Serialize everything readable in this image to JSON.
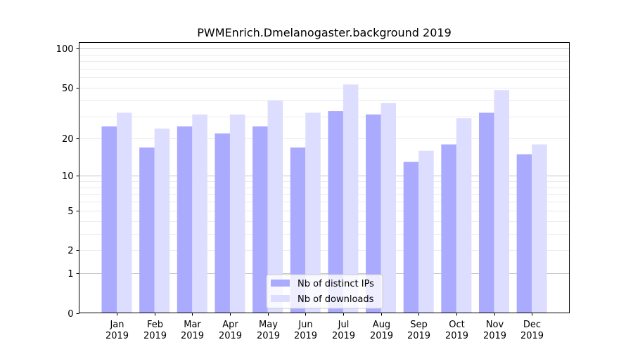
{
  "chart_data": {
    "type": "bar",
    "title": "PWMEnrich.Dmelanogaster.background 2019",
    "xlabel": "",
    "ylabel": "",
    "yscale": "log(1+y)",
    "ylim": [
      0,
      110
    ],
    "grid": true,
    "legend_position": "bottom-center",
    "categories": [
      [
        "Jan",
        "2019"
      ],
      [
        "Feb",
        "2019"
      ],
      [
        "Mar",
        "2019"
      ],
      [
        "Apr",
        "2019"
      ],
      [
        "May",
        "2019"
      ],
      [
        "Jun",
        "2019"
      ],
      [
        "Jul",
        "2019"
      ],
      [
        "Aug",
        "2019"
      ],
      [
        "Sep",
        "2019"
      ],
      [
        "Oct",
        "2019"
      ],
      [
        "Nov",
        "2019"
      ],
      [
        "Dec",
        "2019"
      ]
    ],
    "yticks": [
      {
        "value": 0,
        "label": "0"
      },
      {
        "value": 1,
        "label": "1"
      },
      {
        "value": 2,
        "label": "2"
      },
      {
        "value": 5,
        "label": "5"
      },
      {
        "value": 10,
        "label": "10"
      },
      {
        "value": 20,
        "label": "20"
      },
      {
        "value": 50,
        "label": "50"
      },
      {
        "value": 100,
        "label": "100"
      }
    ],
    "series": [
      {
        "name": "Nb of distinct IPs",
        "color": "#aaaaff",
        "values": [
          25,
          17,
          25,
          22,
          25,
          17,
          33,
          31,
          13,
          18,
          32,
          15
        ]
      },
      {
        "name": "Nb of downloads",
        "color": "#ddddff",
        "values": [
          32,
          24,
          31,
          31,
          40,
          32,
          53,
          38,
          16,
          29,
          48,
          18
        ]
      }
    ]
  }
}
